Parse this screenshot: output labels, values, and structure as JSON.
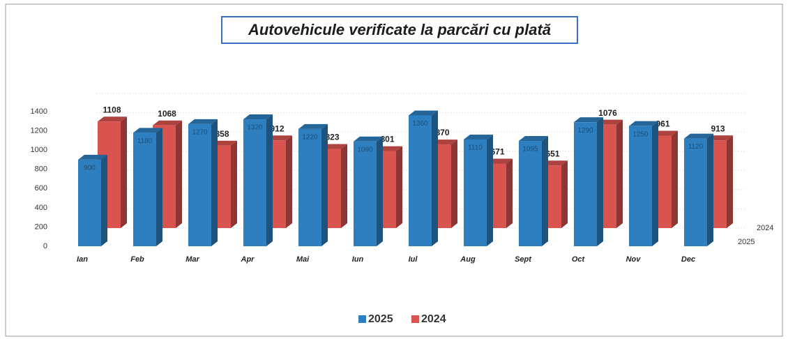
{
  "chart_data": {
    "type": "bar3d",
    "title": "Autovehicule verificate la parcări cu plată",
    "categories": [
      "Ian",
      "Feb",
      "Mar",
      "Apr",
      "Mai",
      "Iun",
      "Iul",
      "Aug",
      "Sept",
      "Oct",
      "Nov",
      "Dec"
    ],
    "series": [
      {
        "name": "2025",
        "color": "#2e7fc0",
        "values": [
          900,
          1180,
          1270,
          1320,
          1220,
          1090,
          1360,
          1110,
          1095,
          1290,
          1250,
          1120
        ]
      },
      {
        "name": "2024",
        "color": "#d9534f",
        "values": [
          1108,
          1068,
          858,
          912,
          823,
          801,
          870,
          671,
          651,
          1076,
          961,
          913
        ]
      }
    ],
    "ylim": [
      0,
      1400
    ],
    "yticks": [
      0,
      200,
      400,
      600,
      800,
      1000,
      1200,
      1400
    ],
    "grid": true,
    "legend": "bottom"
  }
}
